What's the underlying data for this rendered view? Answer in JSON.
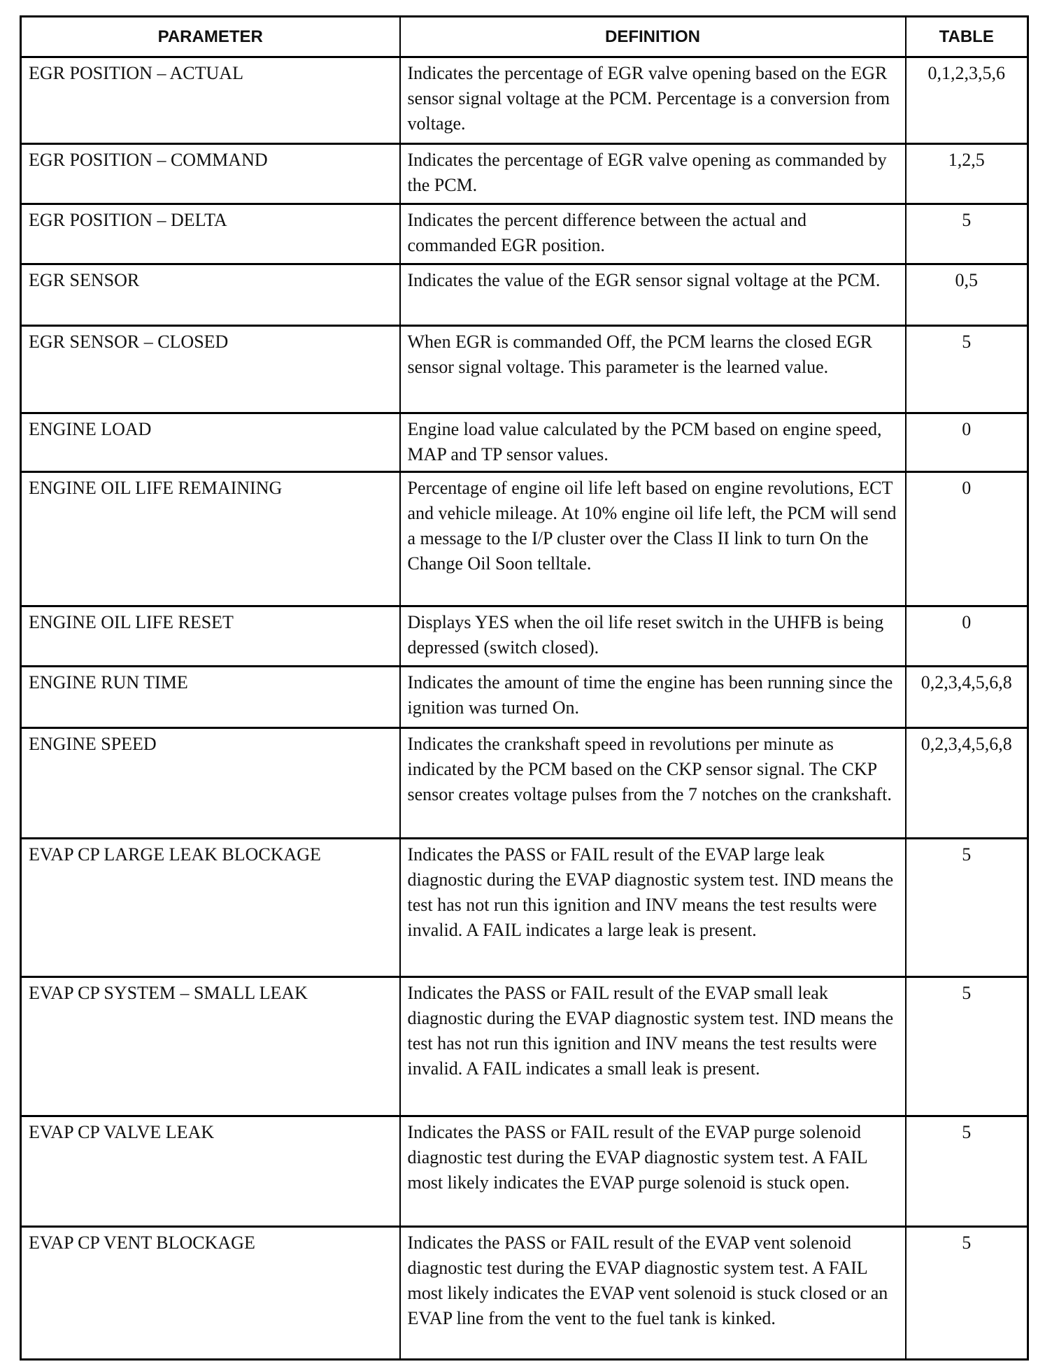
{
  "headers": {
    "parameter": "PARAMETER",
    "definition": "DEFINITION",
    "table": "TABLE"
  },
  "rows": [
    {
      "parameter": "EGR POSITION – ACTUAL",
      "definition": "Indicates the percentage of EGR valve opening based on the EGR sensor signal voltage at the PCM. Percentage is a conversion from voltage.",
      "table": "0,1,2,3,5,6"
    },
    {
      "parameter": "EGR POSITION – COMMAND",
      "definition": "Indicates the percentage of EGR valve opening as commanded by the PCM.",
      "table": "1,2,5"
    },
    {
      "parameter": "EGR POSITION – DELTA",
      "definition": "Indicates the percent difference between the actual and commanded EGR position.",
      "table": "5"
    },
    {
      "parameter": "EGR SENSOR",
      "definition": "Indicates the value of the EGR sensor signal voltage at the PCM.",
      "table": "0,5"
    },
    {
      "parameter": "EGR SENSOR – CLOSED",
      "definition": "When EGR is commanded Off, the PCM learns the closed EGR sensor signal voltage. This parameter is the learned value.",
      "table": "5"
    },
    {
      "parameter": "ENGINE LOAD",
      "definition": "Engine load value calculated by the PCM based on engine speed, MAP and TP sensor values.",
      "table": "0"
    },
    {
      "parameter": "ENGINE OIL LIFE REMAINING",
      "definition": "Percentage of engine oil life left based on engine revolutions, ECT and vehicle mileage. At 10% engine oil life left, the PCM will send a message to the I/P cluster over the Class II link to turn On the Change Oil Soon telltale.",
      "table": "0"
    },
    {
      "parameter": "ENGINE OIL LIFE RESET",
      "definition": "Displays YES when the oil life reset switch in the UHFB is being depressed (switch closed).",
      "table": "0"
    },
    {
      "parameter": "ENGINE RUN TIME",
      "definition": "Indicates the amount of time the engine has been running since the ignition was turned On.",
      "table": "0,2,3,4,5,6,8"
    },
    {
      "parameter": "ENGINE SPEED",
      "definition": "Indicates the crankshaft speed in revolutions per minute as indicated by the PCM based on the CKP sensor signal. The CKP sensor creates voltage pulses from the 7 notches on the crankshaft.",
      "table": "0,2,3,4,5,6,8"
    },
    {
      "parameter": "EVAP CP LARGE LEAK BLOCKAGE",
      "definition": "Indicates the PASS or FAIL result of the EVAP large leak diagnostic during the EVAP diagnostic system test. IND means the test has not run this ignition and INV means the test results were invalid. A FAIL indicates a large leak is present.",
      "table": "5"
    },
    {
      "parameter": "EVAP CP SYSTEM – SMALL LEAK",
      "definition": "Indicates the PASS or FAIL result of the EVAP small leak diagnostic during the EVAP diagnostic system test. IND means the test has not run this ignition and INV means the test results were invalid. A FAIL indicates a small leak is present.",
      "table": "5"
    },
    {
      "parameter": "EVAP CP VALVE LEAK",
      "definition": "Indicates the PASS or FAIL result of the EVAP purge solenoid diagnostic test during the EVAP diagnostic system test. A FAIL most likely indicates the EVAP purge solenoid is stuck open.",
      "table": "5"
    },
    {
      "parameter": "EVAP CP VENT BLOCKAGE",
      "definition": "Indicates the PASS or FAIL result of the EVAP vent solenoid diagnostic test during the EVAP diagnostic system test. A FAIL most likely indicates the EVAP vent solenoid is stuck closed or an EVAP line from the vent to the fuel tank is kinked.",
      "table": "5"
    }
  ]
}
